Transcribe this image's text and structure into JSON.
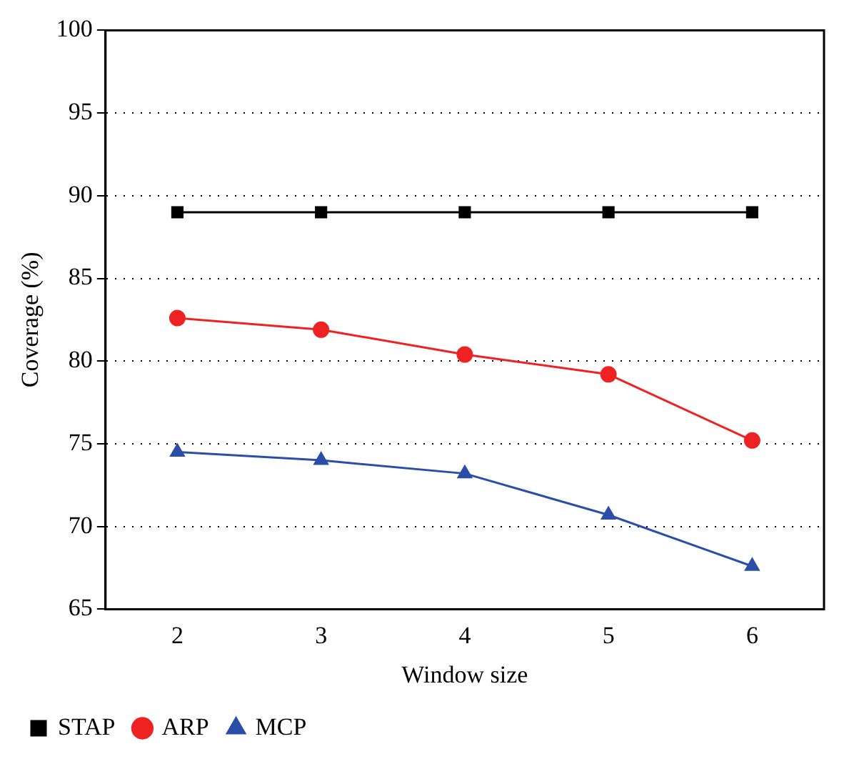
{
  "chart_data": {
    "type": "line",
    "xlabel": "Window size",
    "ylabel": "Coverage (%)",
    "x": [
      2,
      3,
      4,
      5,
      6
    ],
    "xlim": [
      1.5,
      6.5
    ],
    "xticks": [
      2,
      3,
      4,
      5,
      6
    ],
    "ylim": [
      65,
      100
    ],
    "yticks": [
      65,
      70,
      75,
      80,
      85,
      90,
      95,
      100
    ],
    "grid": "y",
    "legend": "bottom",
    "line_style": "solid",
    "series": [
      {
        "name": "STAP",
        "color": "#000000",
        "marker": "square",
        "values": [
          89,
          89,
          89,
          89,
          89
        ]
      },
      {
        "name": "ARP",
        "color": "#ee2222",
        "marker": "circle",
        "values": [
          82.6,
          81.9,
          80.4,
          79.2,
          75.2
        ]
      },
      {
        "name": "MCP",
        "color": "#2b4ea8",
        "marker": "triangle",
        "values": [
          74.5,
          74.0,
          73.2,
          70.7,
          67.6
        ]
      }
    ]
  }
}
